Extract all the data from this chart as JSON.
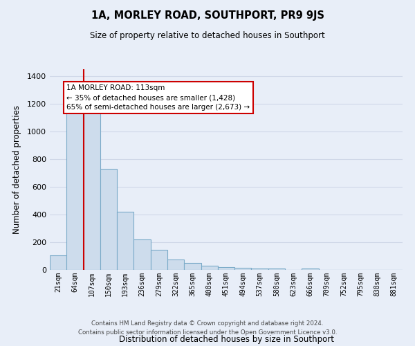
{
  "title": "1A, MORLEY ROAD, SOUTHPORT, PR9 9JS",
  "subtitle": "Size of property relative to detached houses in Southport",
  "xlabel": "Distribution of detached houses by size in Southport",
  "ylabel": "Number of detached properties",
  "bar_labels": [
    "21sqm",
    "64sqm",
    "107sqm",
    "150sqm",
    "193sqm",
    "236sqm",
    "279sqm",
    "322sqm",
    "365sqm",
    "408sqm",
    "451sqm",
    "494sqm",
    "537sqm",
    "580sqm",
    "623sqm",
    "666sqm",
    "709sqm",
    "752sqm",
    "795sqm",
    "838sqm",
    "881sqm"
  ],
  "bar_values": [
    107,
    1155,
    1155,
    728,
    418,
    220,
    147,
    73,
    50,
    32,
    18,
    15,
    10,
    10,
    0,
    8,
    0,
    0,
    0,
    0,
    0
  ],
  "bar_color_fill": "#cddcec",
  "bar_color_edge": "#7aaac8",
  "vline_x": 1.5,
  "vline_color": "#cc0000",
  "annotation_title": "1A MORLEY ROAD: 113sqm",
  "annotation_line1": "← 35% of detached houses are smaller (1,428)",
  "annotation_line2": "65% of semi-detached houses are larger (2,673) →",
  "annotation_box_color": "#ffffff",
  "annotation_box_edge": "#cc0000",
  "ylim": [
    0,
    1450
  ],
  "yticks": [
    0,
    200,
    400,
    600,
    800,
    1000,
    1200,
    1400
  ],
  "footer_line1": "Contains HM Land Registry data © Crown copyright and database right 2024.",
  "footer_line2": "Contains public sector information licensed under the Open Government Licence v3.0.",
  "background_color": "#e8eef8",
  "plot_bg_color": "#e8eef8",
  "grid_color": "#d0d8e8"
}
